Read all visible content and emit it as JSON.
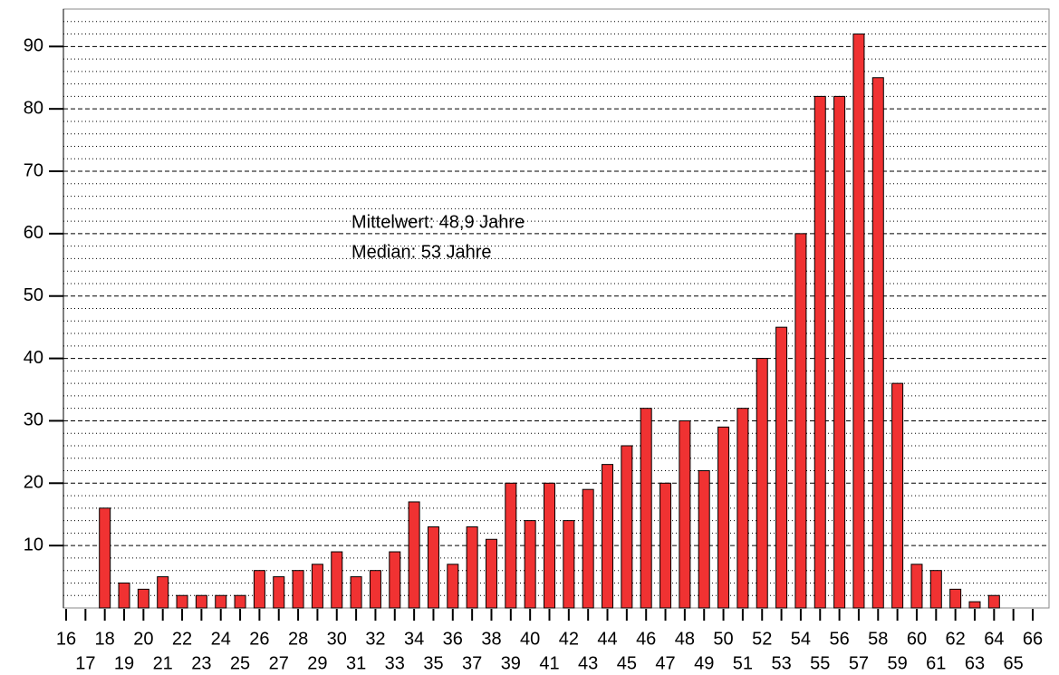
{
  "chart_data": {
    "type": "bar",
    "categories": [
      "16",
      "17",
      "18",
      "19",
      "20",
      "21",
      "22",
      "23",
      "24",
      "25",
      "26",
      "27",
      "28",
      "29",
      "30",
      "31",
      "32",
      "33",
      "34",
      "35",
      "36",
      "37",
      "38",
      "39",
      "40",
      "41",
      "42",
      "43",
      "44",
      "45",
      "46",
      "47",
      "48",
      "49",
      "50",
      "51",
      "52",
      "53",
      "54",
      "55",
      "56",
      "57",
      "58",
      "59",
      "60",
      "61",
      "62",
      "63",
      "64",
      "65",
      "66"
    ],
    "values": [
      0,
      0,
      16,
      4,
      3,
      5,
      2,
      2,
      2,
      2,
      6,
      5,
      6,
      7,
      9,
      5,
      6,
      9,
      17,
      13,
      7,
      13,
      11,
      20,
      14,
      20,
      14,
      19,
      23,
      26,
      32,
      20,
      30,
      22,
      29,
      32,
      40,
      45,
      60,
      82,
      82,
      92,
      85,
      36,
      7,
      6,
      3,
      1,
      2,
      0,
      0
    ],
    "color": "#f03232",
    "ylim": [
      0,
      96
    ],
    "yticks": [
      10,
      20,
      30,
      40,
      50,
      60,
      70,
      80,
      90
    ],
    "yminorticks": [
      2,
      4,
      6,
      8,
      12,
      14,
      16,
      18,
      22,
      24,
      26,
      28,
      32,
      34,
      36,
      38,
      42,
      44,
      46,
      48,
      52,
      54,
      56,
      58,
      62,
      64,
      66,
      68,
      72,
      74,
      76,
      78,
      82,
      84,
      86,
      88,
      92,
      94
    ],
    "grid": true,
    "annotations": [
      "Mittelwert: 48,9 Jahre",
      "Median: 53 Jahre"
    ]
  }
}
